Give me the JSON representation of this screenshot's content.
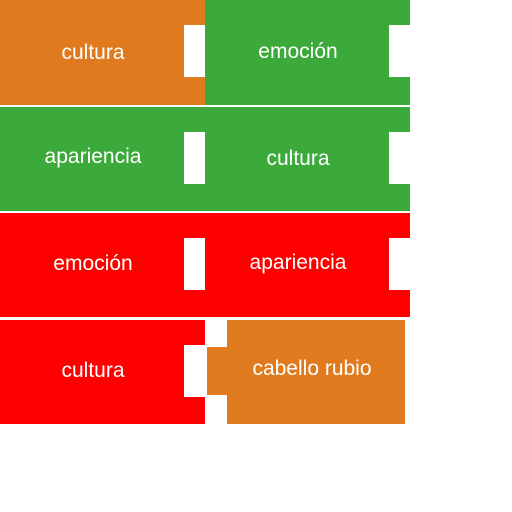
{
  "colors": {
    "orange": "#e07a1f",
    "green": "#3caa3a",
    "red": "#ff0000",
    "background": "#ffffff"
  },
  "tiles": [
    {
      "label": "cultura",
      "color": "#e07a1f"
    },
    {
      "label": "emoción",
      "color": "#3caa3a"
    },
    {
      "label": "apariencia",
      "color": "#3caa3a"
    },
    {
      "label": "cultura",
      "color": "#3caa3a"
    },
    {
      "label": "emoción",
      "color": "#ff0000"
    },
    {
      "label": "apariencia",
      "color": "#ff0000"
    },
    {
      "label": "cultura",
      "color": "#ff0000"
    },
    {
      "label": "cabello rubio",
      "color": "#e07a1f"
    }
  ]
}
